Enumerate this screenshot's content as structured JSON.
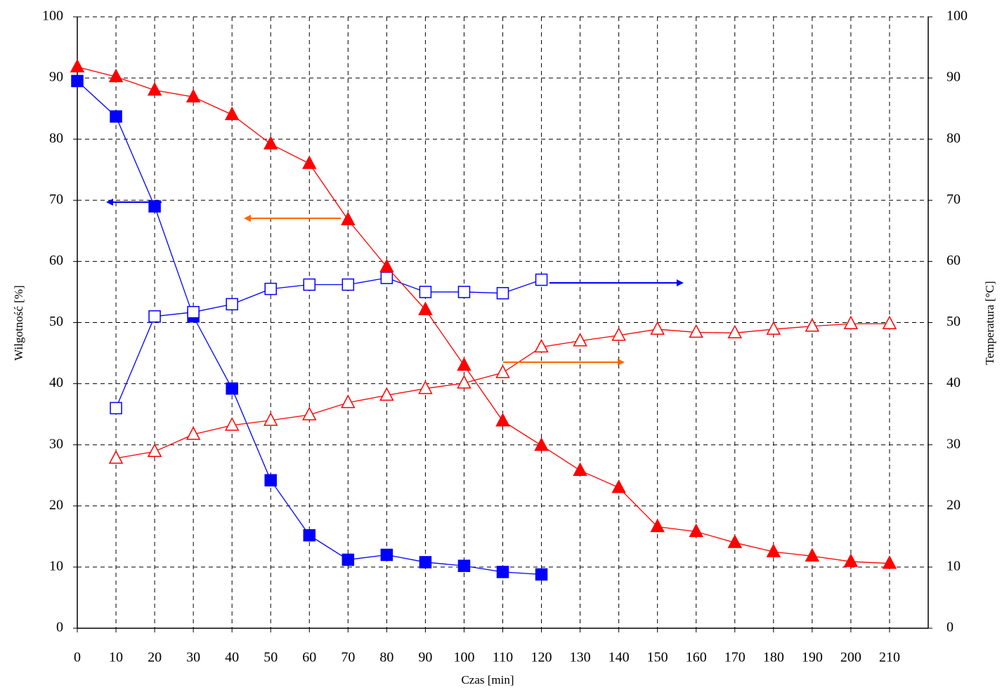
{
  "chart_data": {
    "type": "line",
    "x_label": "Czas [min]",
    "y_label": "Wilgotność [%]",
    "y2_label": "Temperatura [°C]",
    "xlim": [
      0,
      220
    ],
    "xticks": [
      0,
      10,
      20,
      30,
      40,
      50,
      60,
      70,
      80,
      90,
      100,
      110,
      120,
      130,
      140,
      150,
      160,
      170,
      180,
      190,
      200,
      210
    ],
    "ylim": [
      0,
      100
    ],
    "yticks": [
      0,
      10,
      20,
      30,
      40,
      50,
      60,
      70,
      80,
      90,
      100
    ],
    "y2lim": [
      0,
      100
    ],
    "y2ticks": [
      0,
      10,
      20,
      30,
      40,
      50,
      60,
      70,
      80,
      90,
      100
    ],
    "grid": true,
    "series": [
      {
        "color": "#0000ff",
        "marker": "square",
        "filled": true,
        "axis": "y",
        "x": [
          0,
          10,
          20,
          30,
          40,
          50,
          60,
          70,
          80,
          90,
          100,
          110,
          120
        ],
        "values": [
          89.5,
          83.7,
          69,
          51,
          39.2,
          24.2,
          15.2,
          11.2,
          12,
          10.8,
          10.2,
          9.2,
          8.8
        ]
      },
      {
        "color": "#0000ff",
        "marker": "square",
        "filled": false,
        "axis": "y2",
        "x": [
          10,
          20,
          30,
          40,
          50,
          60,
          70,
          80,
          90,
          100,
          110,
          120
        ],
        "values": [
          36,
          51,
          51.7,
          53,
          55.5,
          56.2,
          56.2,
          57.3,
          55,
          55,
          54.8,
          57
        ]
      },
      {
        "color": "#ff0000",
        "marker": "triangle",
        "filled": true,
        "axis": "y",
        "x": [
          0,
          10,
          20,
          30,
          40,
          50,
          60,
          70,
          80,
          90,
          100,
          110,
          120,
          130,
          140,
          150,
          160,
          170,
          180,
          190,
          200,
          210
        ],
        "values": [
          91.8,
          90.2,
          88,
          86.9,
          84,
          79.2,
          76,
          66.8,
          59.1,
          52.1,
          43,
          33.9,
          29.9,
          25.8,
          23,
          16.6,
          15.8,
          14,
          12.5,
          11.8,
          10.9,
          10.6
        ]
      },
      {
        "color": "#ff0000",
        "marker": "triangle",
        "filled": false,
        "axis": "y2",
        "x": [
          10,
          20,
          30,
          40,
          50,
          60,
          70,
          80,
          90,
          100,
          110,
          120,
          130,
          140,
          150,
          160,
          170,
          180,
          190,
          200,
          210
        ],
        "values": [
          27.8,
          28.9,
          31.7,
          33.2,
          34,
          34.9,
          36.9,
          38.1,
          39.2,
          40.1,
          41.8,
          46,
          47,
          47.9,
          48.9,
          48.4,
          48.3,
          48.9,
          49.4,
          49.8,
          49.8
        ]
      }
    ]
  }
}
